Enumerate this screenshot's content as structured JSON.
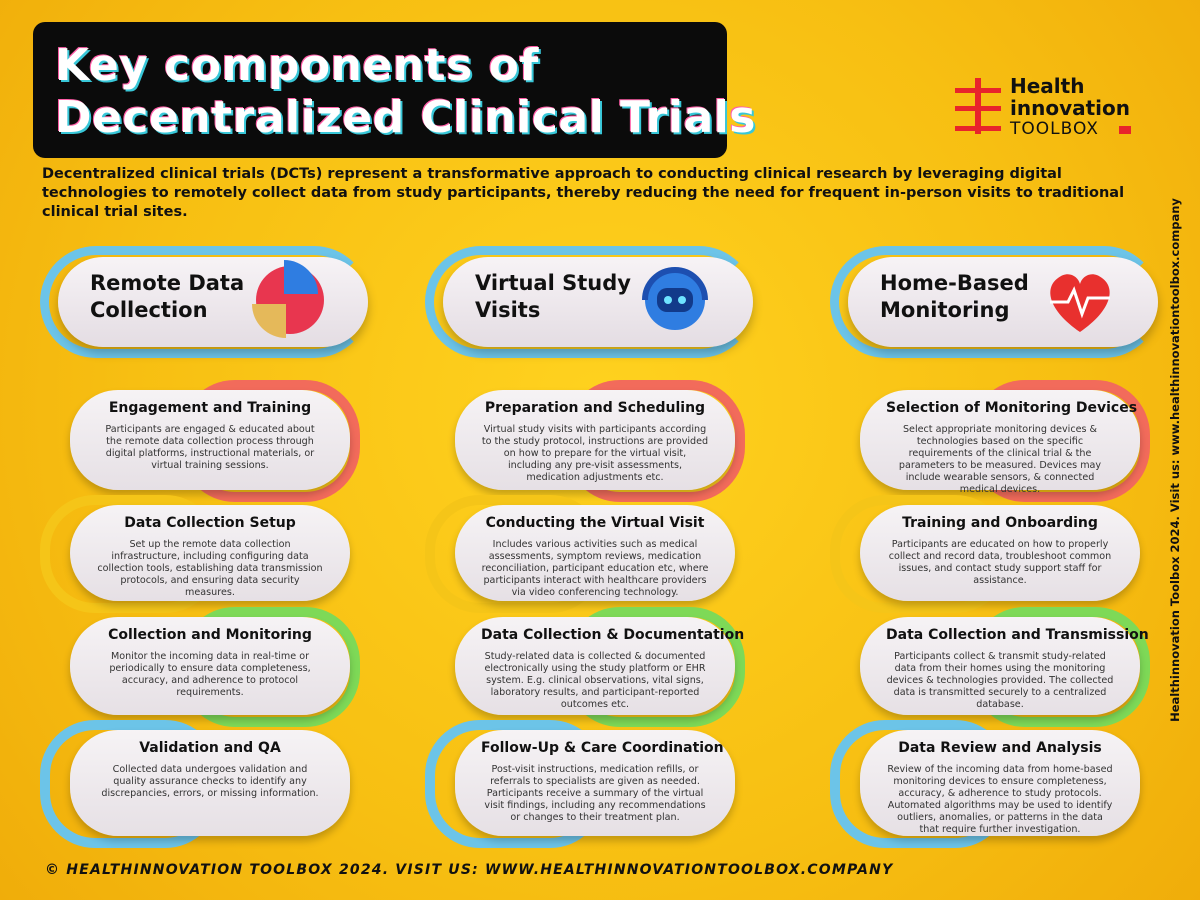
{
  "header": {
    "title_lines": [
      "Key components of",
      "Decentralized Clinical Trials"
    ],
    "logo": [
      "Health",
      "innovation",
      "TOOLBOX"
    ]
  },
  "intro": "Decentralized clinical trials (DCTs) represent a transformative approach to conducting clinical research by leveraging digital technologies to remotely collect data from study participants, thereby reducing the need for frequent in-person visits to traditional clinical trial sites.",
  "columns": [
    {
      "heading": "Remote Data Collection",
      "steps": [
        {
          "title": "Engagement and Training",
          "text": "Participants are engaged & educated about the remote data collection process through digital platforms, instructional materials, or virtual training sessions."
        },
        {
          "title": "Data Collection Setup",
          "text": "Set up the remote data collection infrastructure, including configuring data collection tools, establishing data transmission protocols, and ensuring data security measures."
        },
        {
          "title": "Collection and Monitoring",
          "text": "Monitor the incoming data in real-time or periodically to ensure data completeness, accuracy, and adherence to protocol requirements."
        },
        {
          "title": "Validation and QA",
          "text": "Collected data undergoes validation and quality assurance checks to identify any discrepancies, errors, or missing information."
        }
      ]
    },
    {
      "heading": "Virtual Study Visits",
      "steps": [
        {
          "title": "Preparation and Scheduling",
          "text": "Virtual study visits with participants according to the study protocol, instructions are provided on how to prepare for the virtual visit, including any pre-visit assessments, medication adjustments etc."
        },
        {
          "title": "Conducting the Virtual Visit",
          "text": "Includes various activities such as medical assessments, symptom reviews, medication reconciliation, participant education etc, where participants interact with healthcare providers via video conferencing technology."
        },
        {
          "title": "Data Collection & Documentation",
          "text": "Study-related data is collected & documented electronically using the study platform or EHR system. E.g. clinical observations, vital signs, laboratory results, and participant-reported outcomes etc."
        },
        {
          "title": "Follow-Up & Care Coordination",
          "text": "Post-visit instructions, medication refills, or referrals to specialists are given as needed. Participants receive a summary of the virtual visit findings, including any recommendations or changes to their treatment plan."
        }
      ]
    },
    {
      "heading": "Home-Based Monitoring",
      "steps": [
        {
          "title": "Selection of Monitoring Devices",
          "text": "Select appropriate monitoring devices & technologies based on the specific requirements of the clinical trial & the parameters to be measured. Devices may include wearable sensors, & connected medical devices."
        },
        {
          "title": "Training and Onboarding",
          "text": "Participants are educated on how to properly collect and record data, troubleshoot common issues, and contact study support staff for assistance."
        },
        {
          "title": "Data Collection and Transmission",
          "text": "Participants collect & transmit study-related data from their homes using the monitoring devices & technologies provided. The collected data is transmitted securely to a centralized database."
        },
        {
          "title": "Data Review and Analysis",
          "text": "Review of the incoming data from home-based monitoring devices to ensure completeness, accuracy, & adherence to study protocols. Automated algorithms may be used to identify outliers, anomalies, or patterns in the data that require further investigation."
        }
      ]
    }
  ],
  "side_note": "Healthinnovation Toolbox 2024. Visit us: www.healthinnovationtoolbox.company",
  "footer": "© Healthinnovation Toolbox 2024. Visit us: www.healthinnovationtoolbox.company"
}
